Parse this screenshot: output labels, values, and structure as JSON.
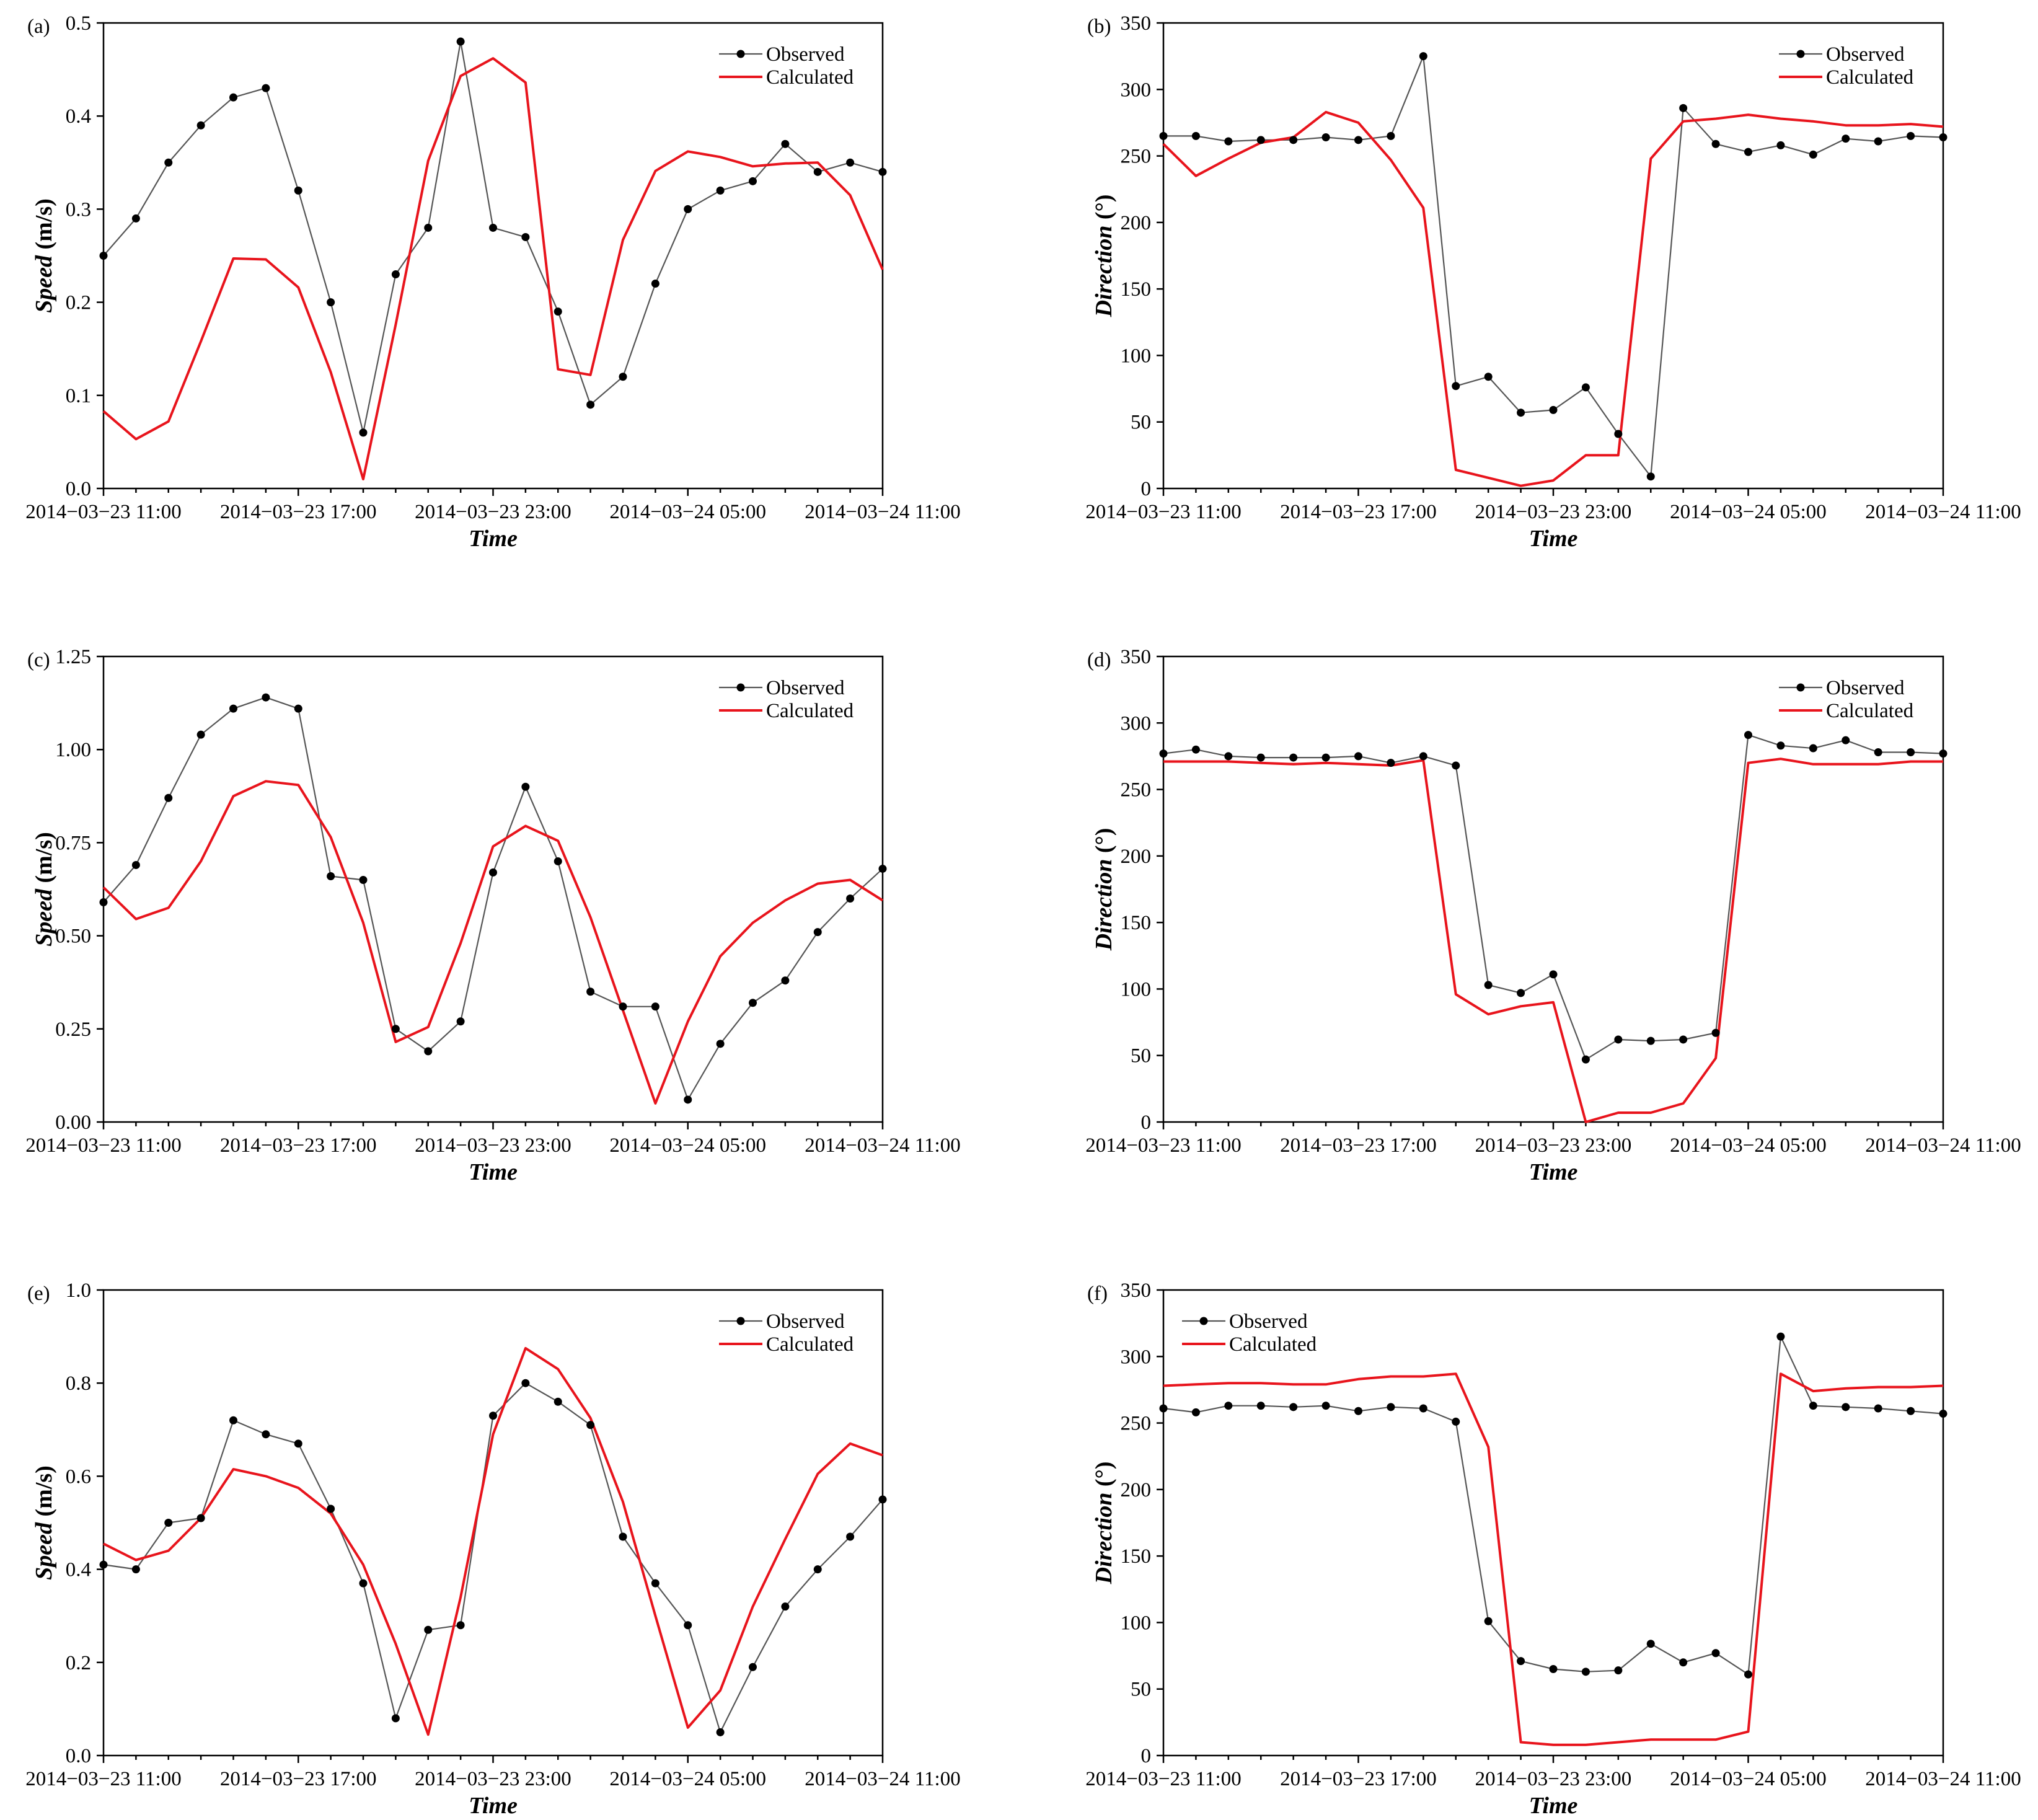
{
  "colors": {
    "observed": "#555555",
    "observed_marker": "#000000",
    "calculated": "#e8141c",
    "axis": "#000000"
  },
  "chart_data": [
    {
      "panel": "(a)",
      "type": "line",
      "xlabel": "Time",
      "ylabel_name": "Speed",
      "ylabel_unit": " (m/s)",
      "ylim": [
        0,
        0.5
      ],
      "yticks": [
        "0.0",
        "0.1",
        "0.2",
        "0.3",
        "0.4",
        "0.5"
      ],
      "yvalues": [
        0,
        0.1,
        0.2,
        0.3,
        0.4,
        0.5
      ],
      "xrange": [
        0,
        24
      ],
      "xticks": [
        "2014−03−23 11:00",
        "2014−03−23 17:00",
        "2014−03−23 23:00",
        "2014−03−24 05:00",
        "2014−03−24 11:00"
      ],
      "xtick_hours": [
        0,
        6,
        12,
        18,
        24
      ],
      "legend_position": "top-right",
      "series": [
        {
          "name": "Observed",
          "x": [
            0,
            1,
            2,
            3,
            4,
            5,
            6,
            7,
            8,
            9,
            10,
            11,
            12,
            13,
            14,
            15,
            16,
            17,
            18,
            19,
            20,
            21,
            22,
            23,
            24
          ],
          "values": [
            0.25,
            0.29,
            0.35,
            0.39,
            0.42,
            0.43,
            0.32,
            0.2,
            0.06,
            0.23,
            0.28,
            0.48,
            0.28,
            0.27,
            0.19,
            0.09,
            0.12,
            0.22,
            0.3,
            0.32,
            0.33,
            0.37,
            0.34,
            0.35,
            0.34
          ]
        },
        {
          "name": "Calculated",
          "x": [
            0,
            1,
            2,
            3,
            4,
            5,
            6,
            7,
            8,
            9,
            10,
            11,
            12,
            13,
            14,
            15,
            16,
            17,
            18,
            19,
            20,
            21,
            22,
            23,
            24
          ],
          "values": [
            0.083,
            0.053,
            0.072,
            0.158,
            0.247,
            0.246,
            0.216,
            0.125,
            0.01,
            0.176,
            0.352,
            0.443,
            0.462,
            0.436,
            0.128,
            0.122,
            0.267,
            0.341,
            0.362,
            0.356,
            0.346,
            0.349,
            0.35,
            0.315,
            0.235
          ]
        }
      ]
    },
    {
      "panel": "(b)",
      "type": "line",
      "xlabel": "Time",
      "ylabel_name": "Direction",
      "ylabel_unit": " (°)",
      "ylim": [
        0,
        350
      ],
      "yticks": [
        "0",
        "50",
        "100",
        "150",
        "200",
        "250",
        "300",
        "350"
      ],
      "yvalues": [
        0,
        50,
        100,
        150,
        200,
        250,
        300,
        350
      ],
      "xrange": [
        0,
        24
      ],
      "xticks": [
        "2014−03−23 11:00",
        "2014−03−23 17:00",
        "2014−03−23 23:00",
        "2014−03−24 05:00",
        "2014−03−24 11:00"
      ],
      "xtick_hours": [
        0,
        6,
        12,
        18,
        24
      ],
      "legend_position": "top-right",
      "series": [
        {
          "name": "Observed",
          "x": [
            0,
            1,
            2,
            3,
            4,
            5,
            6,
            7,
            8,
            9,
            10,
            11,
            12,
            13,
            14,
            15,
            16,
            17,
            18,
            19,
            20,
            21,
            22,
            23,
            24
          ],
          "values": [
            265,
            265,
            261,
            262,
            262,
            264,
            262,
            265,
            325,
            77,
            84,
            57,
            59,
            76,
            41,
            9,
            286,
            259,
            253,
            258,
            251,
            263,
            261,
            265,
            264
          ]
        },
        {
          "name": "Calculated",
          "x": [
            0,
            1,
            2,
            3,
            4,
            5,
            6,
            7,
            8,
            9,
            10,
            11,
            12,
            13,
            14,
            15,
            16,
            17,
            18,
            19,
            20,
            21,
            22,
            23,
            24
          ],
          "values": [
            259,
            235,
            248,
            260,
            264,
            283,
            275,
            247,
            211,
            14,
            8,
            2,
            6,
            25,
            25,
            248,
            276,
            278,
            281,
            278,
            276,
            273,
            273,
            274,
            272
          ]
        }
      ]
    },
    {
      "panel": "(c)",
      "type": "line",
      "xlabel": "Time",
      "ylabel_name": "Speed",
      "ylabel_unit": " (m/s)",
      "ylim": [
        0,
        1.25
      ],
      "yticks": [
        "0.00",
        "0.25",
        "0.50",
        "0.75",
        "1.00",
        "1.25"
      ],
      "yvalues": [
        0,
        0.25,
        0.5,
        0.75,
        1.0,
        1.25
      ],
      "xrange": [
        0,
        24
      ],
      "xticks": [
        "2014−03−23 11:00",
        "2014−03−23 17:00",
        "2014−03−23 23:00",
        "2014−03−24 05:00",
        "2014−03−24 11:00"
      ],
      "xtick_hours": [
        0,
        6,
        12,
        18,
        24
      ],
      "legend_position": "top-right",
      "series": [
        {
          "name": "Observed",
          "x": [
            0,
            1,
            2,
            3,
            4,
            5,
            6,
            7,
            8,
            9,
            10,
            11,
            12,
            13,
            14,
            15,
            16,
            17,
            18,
            19,
            20,
            21,
            22,
            23,
            24
          ],
          "values": [
            0.59,
            0.69,
            0.87,
            1.04,
            1.11,
            1.14,
            1.11,
            0.66,
            0.65,
            0.25,
            0.19,
            0.27,
            0.67,
            0.9,
            0.7,
            0.35,
            0.31,
            0.31,
            0.06,
            0.21,
            0.32,
            0.38,
            0.51,
            0.6,
            0.68
          ]
        },
        {
          "name": "Calculated",
          "x": [
            0,
            1,
            2,
            3,
            4,
            5,
            6,
            7,
            8,
            9,
            10,
            11,
            12,
            13,
            14,
            15,
            16,
            17,
            18,
            19,
            20,
            21,
            22,
            23,
            24
          ],
          "values": [
            0.63,
            0.545,
            0.575,
            0.7,
            0.875,
            0.915,
            0.905,
            0.765,
            0.535,
            0.215,
            0.255,
            0.48,
            0.74,
            0.795,
            0.755,
            0.55,
            0.3,
            0.05,
            0.27,
            0.445,
            0.535,
            0.595,
            0.64,
            0.65,
            0.595
          ]
        }
      ]
    },
    {
      "panel": "(d)",
      "type": "line",
      "xlabel": "Time",
      "ylabel_name": "Direction",
      "ylabel_unit": " (°)",
      "ylim": [
        0,
        350
      ],
      "yticks": [
        "0",
        "50",
        "100",
        "150",
        "200",
        "250",
        "300",
        "350"
      ],
      "yvalues": [
        0,
        50,
        100,
        150,
        200,
        250,
        300,
        350
      ],
      "xrange": [
        0,
        24
      ],
      "xticks": [
        "2014−03−23 11:00",
        "2014−03−23 17:00",
        "2014−03−23 23:00",
        "2014−03−24 05:00",
        "2014−03−24 11:00"
      ],
      "xtick_hours": [
        0,
        6,
        12,
        18,
        24
      ],
      "legend_position": "top-right",
      "series": [
        {
          "name": "Observed",
          "x": [
            0,
            1,
            2,
            3,
            4,
            5,
            6,
            7,
            8,
            9,
            10,
            11,
            12,
            13,
            14,
            15,
            16,
            17,
            18,
            19,
            20,
            21,
            22,
            23,
            24
          ],
          "values": [
            277,
            280,
            275,
            274,
            274,
            274,
            275,
            270,
            275,
            268,
            103,
            97,
            111,
            47,
            62,
            61,
            62,
            67,
            291,
            283,
            281,
            287,
            278,
            278,
            277
          ]
        },
        {
          "name": "Calculated",
          "x": [
            0,
            1,
            2,
            3,
            4,
            5,
            6,
            7,
            8,
            9,
            10,
            11,
            12,
            13,
            14,
            15,
            16,
            17,
            18,
            19,
            20,
            21,
            22,
            23,
            24
          ],
          "values": [
            271,
            271,
            271,
            270,
            269,
            270,
            269,
            268,
            272,
            96,
            81,
            87,
            90,
            0,
            7,
            7,
            14,
            48,
            270,
            273,
            269,
            269,
            269,
            271,
            271
          ]
        }
      ]
    },
    {
      "panel": "(e)",
      "type": "line",
      "xlabel": "Time",
      "ylabel_name": "Speed",
      "ylabel_unit": " (m/s)",
      "ylim": [
        0,
        1.0
      ],
      "yticks": [
        "0.0",
        "0.2",
        "0.4",
        "0.6",
        "0.8",
        "1.0"
      ],
      "yvalues": [
        0,
        0.2,
        0.4,
        0.6,
        0.8,
        1.0
      ],
      "xrange": [
        0,
        24
      ],
      "xticks": [
        "2014−03−23 11:00",
        "2014−03−23 17:00",
        "2014−03−23 23:00",
        "2014−03−24 05:00",
        "2014−03−24 11:00"
      ],
      "xtick_hours": [
        0,
        6,
        12,
        18,
        24
      ],
      "legend_position": "top-right",
      "series": [
        {
          "name": "Observed",
          "x": [
            0,
            1,
            2,
            3,
            4,
            5,
            6,
            7,
            8,
            9,
            10,
            11,
            12,
            13,
            14,
            15,
            16,
            17,
            18,
            19,
            20,
            21,
            22,
            23,
            24
          ],
          "values": [
            0.41,
            0.4,
            0.5,
            0.51,
            0.72,
            0.69,
            0.67,
            0.53,
            0.37,
            0.08,
            0.27,
            0.28,
            0.73,
            0.8,
            0.76,
            0.71,
            0.47,
            0.37,
            0.28,
            0.05,
            0.19,
            0.32,
            0.4,
            0.47,
            0.55
          ]
        },
        {
          "name": "Calculated",
          "x": [
            0,
            1,
            2,
            3,
            4,
            5,
            6,
            7,
            8,
            9,
            10,
            11,
            12,
            13,
            14,
            15,
            16,
            17,
            18,
            19,
            20,
            21,
            22,
            23,
            24
          ],
          "values": [
            0.455,
            0.42,
            0.44,
            0.51,
            0.615,
            0.6,
            0.575,
            0.52,
            0.41,
            0.24,
            0.045,
            0.34,
            0.69,
            0.875,
            0.83,
            0.725,
            0.545,
            0.3,
            0.06,
            0.14,
            0.32,
            0.465,
            0.605,
            0.67,
            0.645
          ]
        }
      ]
    },
    {
      "panel": "(f)",
      "type": "line",
      "xlabel": "Time",
      "ylabel_name": "Direction",
      "ylabel_unit": " (°)",
      "ylim": [
        0,
        350
      ],
      "yticks": [
        "0",
        "50",
        "100",
        "150",
        "200",
        "250",
        "300",
        "350"
      ],
      "yvalues": [
        0,
        50,
        100,
        150,
        200,
        250,
        300,
        350
      ],
      "xrange": [
        0,
        24
      ],
      "xticks": [
        "2014−03−23 11:00",
        "2014−03−23 17:00",
        "2014−03−23 23:00",
        "2014−03−24 05:00",
        "2014−03−24 11:00"
      ],
      "xtick_hours": [
        0,
        6,
        12,
        18,
        24
      ],
      "legend_position": "top-left",
      "series": [
        {
          "name": "Observed",
          "x": [
            0,
            1,
            2,
            3,
            4,
            5,
            6,
            7,
            8,
            9,
            10,
            11,
            12,
            13,
            14,
            15,
            16,
            17,
            18,
            19,
            20,
            21,
            22,
            23,
            24
          ],
          "values": [
            261,
            258,
            263,
            263,
            262,
            263,
            259,
            262,
            261,
            251,
            101,
            71,
            65,
            63,
            64,
            84,
            70,
            77,
            61,
            315,
            263,
            262,
            261,
            259,
            257
          ]
        },
        {
          "name": "Calculated",
          "x": [
            0,
            1,
            2,
            3,
            4,
            5,
            6,
            7,
            8,
            9,
            10,
            11,
            12,
            13,
            14,
            15,
            16,
            17,
            18,
            19,
            20,
            21,
            22,
            23,
            24
          ],
          "values": [
            278,
            279,
            280,
            280,
            279,
            279,
            283,
            285,
            285,
            287,
            232,
            10,
            8,
            8,
            10,
            12,
            12,
            12,
            18,
            287,
            274,
            276,
            277,
            277,
            278
          ]
        }
      ]
    }
  ]
}
